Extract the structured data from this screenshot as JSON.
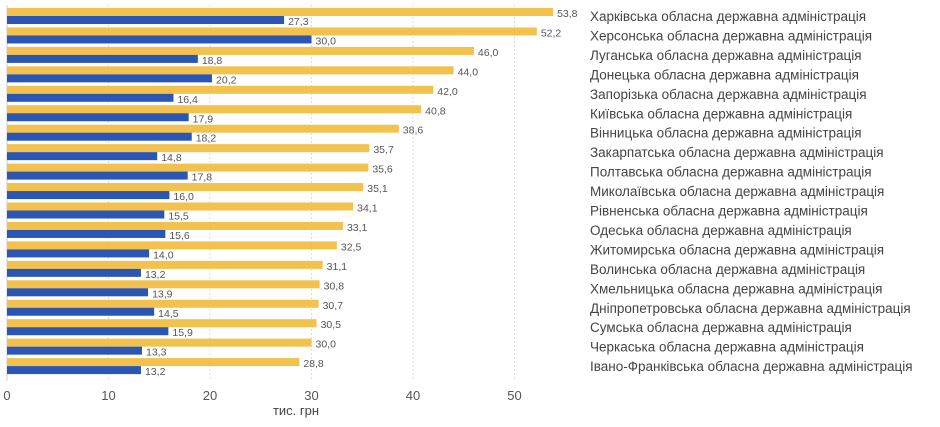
{
  "chart_data": {
    "type": "bar",
    "orientation": "horizontal",
    "xlabel": "тис. грн",
    "xlim": [
      0,
      53.8
    ],
    "xticks": [
      "0",
      "10",
      "20",
      "30",
      "40",
      "50"
    ],
    "grid": true,
    "colors": {
      "series_1": "#F2C14E",
      "series_2": "#2B56B4"
    },
    "categories": [
      "Харківська обласна державна адміністрація",
      "Херсонська обласна державна адміністрація",
      "Луганська обласна державна адміністрація",
      "Донецька обласна державна адміністрація",
      "Запорізька обласна державна адміністрація",
      "Київська обласна державна адміністрація",
      "Вінницька обласна державна адміністрація",
      "Закарпатська обласна державна адміністрація",
      "Полтавська обласна державна адміністрація",
      "Миколаївська обласна державна адміністрація",
      "Рівненська обласна державна адміністрація",
      "Одеська обласна державна адміністрація",
      "Житомирська обласна державна адміністрація",
      "Волинська обласна державна адміністрація",
      "Хмельницька обласна державна адміністрація",
      "Дніпропетровська обласна державна адміністрація",
      "Сумська обласна державна адміністрація",
      "Черкаська обласна державна адміністрація",
      "Івано-Франківська обласна державна адміністрація"
    ],
    "series": [
      {
        "values": [
          53.8,
          52.2,
          46.0,
          44.0,
          42.0,
          40.8,
          38.6,
          35.7,
          35.6,
          35.1,
          34.1,
          33.1,
          32.5,
          31.1,
          30.8,
          30.7,
          30.5,
          30.0,
          28.8
        ],
        "labels": [
          "53,8",
          "52,2",
          "46,0",
          "44,0",
          "42,0",
          "40,8",
          "38,6",
          "35,7",
          "35,6",
          "35,1",
          "34,1",
          "33,1",
          "32,5",
          "31,1",
          "30,8",
          "30,7",
          "30,5",
          "30,0",
          "28,8"
        ]
      },
      {
        "values": [
          27.3,
          30.0,
          18.8,
          20.2,
          16.4,
          17.9,
          18.2,
          14.8,
          17.8,
          16.0,
          15.5,
          15.6,
          14.0,
          13.2,
          13.9,
          14.5,
          15.9,
          13.3,
          13.2
        ],
        "labels": [
          "27,3",
          "30,0",
          "18,8",
          "20,2",
          "16,4",
          "17,9",
          "18,2",
          "14,8",
          "17,8",
          "16,0",
          "15,5",
          "15,6",
          "14,0",
          "13,2",
          "13,9",
          "14,5",
          "15,9",
          "13,3",
          "13,2"
        ]
      }
    ]
  }
}
